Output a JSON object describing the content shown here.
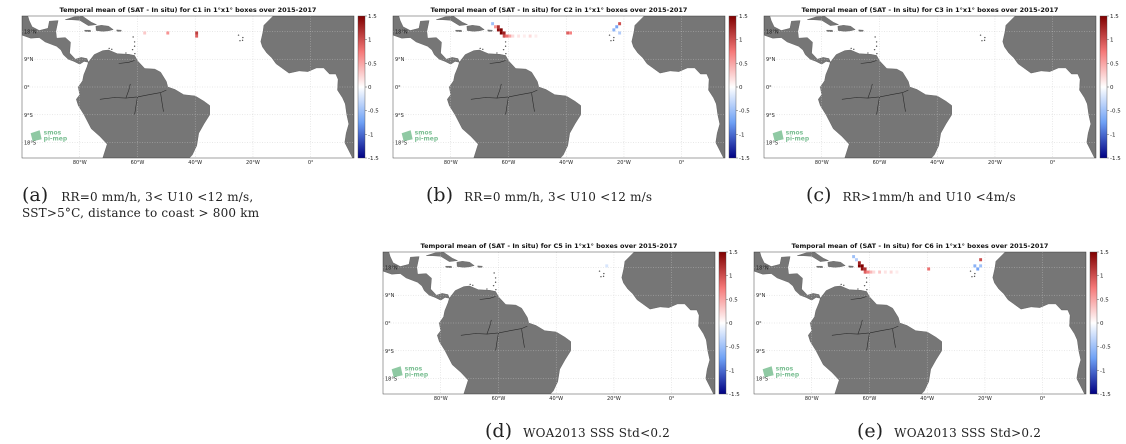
{
  "colors": {
    "land": "#767676",
    "ocean": "#ffffff",
    "grid": "#c8c8c8",
    "logo": "#7bbf93"
  },
  "colorbar": {
    "ticks": [
      "1.5",
      "1",
      "0.5",
      "0",
      "-0.5",
      "-1",
      "-1.5"
    ],
    "min": -1.5,
    "max": 1.5,
    "colormap": "blue-white-red"
  },
  "axes": {
    "lon_ticks": [
      "80°W",
      "60°W",
      "40°W",
      "20°W",
      "0°"
    ],
    "lat_ticks": [
      "18°N",
      "9°N",
      "0°",
      "9°S",
      "18°S"
    ]
  },
  "logo": {
    "line1": "smos",
    "line2": "pi-mep",
    "icon": "smos-pimep-logo-icon"
  },
  "panels": [
    {
      "title": "Temporal mean of (SAT - In situ) for C1 in 1°x1° boxes over 2015-2017",
      "caption_letter": "(a)",
      "caption_line1": "RR=0 mm/h, 3< U10 <12 m/s,",
      "caption_line2": "SST>5°C, distance to coast > 800 km",
      "cells": [
        {
          "lon": -57.5,
          "lat": 17.5,
          "value": 0.3
        },
        {
          "lon": -49.5,
          "lat": 17.5,
          "value": 0.6
        },
        {
          "lon": -39.5,
          "lat": 17.5,
          "value": 1.1
        },
        {
          "lon": -39.5,
          "lat": 16.5,
          "value": 0.9
        }
      ]
    },
    {
      "title": "Temporal mean of (SAT - In situ) for C2 in 1°x1° boxes over 2015-2017",
      "caption_letter": "(b)",
      "caption_line1": "RR=0 mm/h, 3< U10 <12 m/s",
      "caption_line2": "",
      "cells": [
        {
          "lon": -65.5,
          "lat": 20.5,
          "value": -0.5
        },
        {
          "lon": -64.5,
          "lat": 19.5,
          "value": 0.6
        },
        {
          "lon": -63.5,
          "lat": 19.5,
          "value": 1.2
        },
        {
          "lon": -63.5,
          "lat": 18.5,
          "value": 1.4
        },
        {
          "lon": -62.5,
          "lat": 18.5,
          "value": 1.5
        },
        {
          "lon": -62.5,
          "lat": 17.5,
          "value": 1.5
        },
        {
          "lon": -61.5,
          "lat": 17.5,
          "value": 1.3
        },
        {
          "lon": -61.5,
          "lat": 16.5,
          "value": 1.0
        },
        {
          "lon": -60.5,
          "lat": 16.5,
          "value": 0.8
        },
        {
          "lon": -59.5,
          "lat": 16.5,
          "value": 0.5
        },
        {
          "lon": -58.5,
          "lat": 16.5,
          "value": 0.2
        },
        {
          "lon": -56.5,
          "lat": 16.5,
          "value": 0.15
        },
        {
          "lon": -54.5,
          "lat": 16.5,
          "value": 0.1
        },
        {
          "lon": -52.5,
          "lat": 16.5,
          "value": 0.2
        },
        {
          "lon": -50.5,
          "lat": 16.5,
          "value": 0.1
        },
        {
          "lon": -39.5,
          "lat": 17.5,
          "value": 0.9
        },
        {
          "lon": -38.5,
          "lat": 17.5,
          "value": 0.7
        },
        {
          "lon": -23.5,
          "lat": 18.5,
          "value": -0.6
        },
        {
          "lon": -22.5,
          "lat": 19.5,
          "value": -0.7
        },
        {
          "lon": -21.5,
          "lat": 20.5,
          "value": 1.0
        },
        {
          "lon": -21.5,
          "lat": 17.5,
          "value": -0.4
        }
      ]
    },
    {
      "title": "Temporal mean of (SAT - In situ) for C3 in 1°x1° boxes over 2015-2017",
      "caption_letter": "(c)",
      "caption_line1": "RR>1mm/h and U10 <4m/s",
      "caption_line2": "",
      "cells": []
    },
    {
      "title": "Temporal mean of (SAT - In situ) for C5 in 1°x1° boxes over 2015-2017",
      "caption_letter": "(d)",
      "caption_line1": "WOA2013 SSS Std<0.2",
      "caption_line2": "",
      "cells": [
        {
          "lon": -22.5,
          "lat": 18.5,
          "value": -0.2
        }
      ]
    },
    {
      "title": "Temporal mean of (SAT - In situ) for C6 in 1°x1° boxes over 2015-2017",
      "caption_letter": "(e)",
      "caption_line1": "WOA2013 SSS Std>0.2",
      "caption_line2": "",
      "cells": [
        {
          "lon": -65.5,
          "lat": 21.5,
          "value": -0.5
        },
        {
          "lon": -64.5,
          "lat": 20.5,
          "value": -0.4
        },
        {
          "lon": -63.5,
          "lat": 19.5,
          "value": 1.3
        },
        {
          "lon": -63.5,
          "lat": 18.5,
          "value": 1.5
        },
        {
          "lon": -62.5,
          "lat": 18.5,
          "value": 1.5
        },
        {
          "lon": -62.5,
          "lat": 17.5,
          "value": 1.4
        },
        {
          "lon": -61.5,
          "lat": 17.5,
          "value": 1.2
        },
        {
          "lon": -61.5,
          "lat": 16.5,
          "value": 0.9
        },
        {
          "lon": -60.5,
          "lat": 16.5,
          "value": 0.7
        },
        {
          "lon": -59.5,
          "lat": 16.5,
          "value": 0.4
        },
        {
          "lon": -58.5,
          "lat": 16.5,
          "value": 0.2
        },
        {
          "lon": -56.5,
          "lat": 16.5,
          "value": 0.3
        },
        {
          "lon": -54.5,
          "lat": 16.5,
          "value": 0.15
        },
        {
          "lon": -52.5,
          "lat": 16.5,
          "value": 0.2
        },
        {
          "lon": -50.5,
          "lat": 16.5,
          "value": 0.1
        },
        {
          "lon": -39.5,
          "lat": 17.5,
          "value": 0.8
        },
        {
          "lon": -23.5,
          "lat": 18.5,
          "value": -0.6
        },
        {
          "lon": -22.5,
          "lat": 17.5,
          "value": -0.7
        },
        {
          "lon": -21.5,
          "lat": 20.5,
          "value": 1.0
        },
        {
          "lon": -21.5,
          "lat": 18.5,
          "value": -0.5
        }
      ]
    }
  ]
}
